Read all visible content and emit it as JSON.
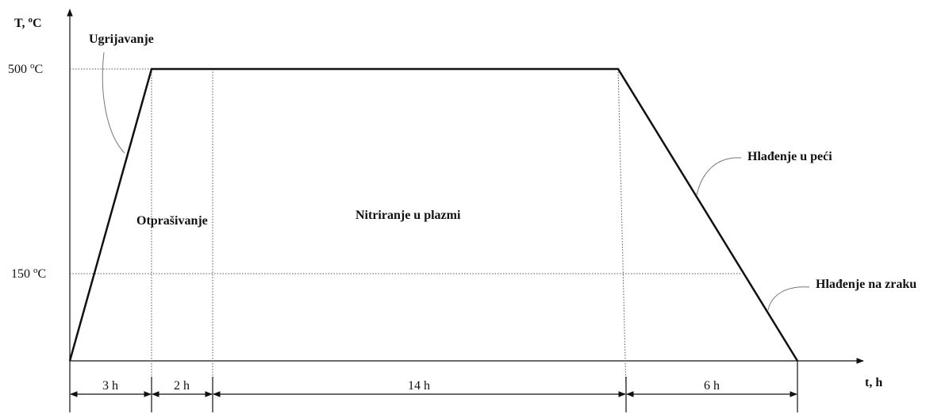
{
  "y_label": [
    "T, ",
    "o",
    "C"
  ],
  "x_label": "t, h",
  "y_levels": [
    [
      "500 ",
      "o",
      "C"
    ],
    [
      "150 ",
      "o",
      "C"
    ]
  ],
  "phases": [
    "Ugrijavanje",
    "Otprašivanje",
    "Nitriranje u plazmi",
    "Hlađenje u peći",
    "Hlađenje na zraku"
  ],
  "durations": [
    "3 h",
    "2 h",
    "14 h",
    "6 h"
  ]
}
